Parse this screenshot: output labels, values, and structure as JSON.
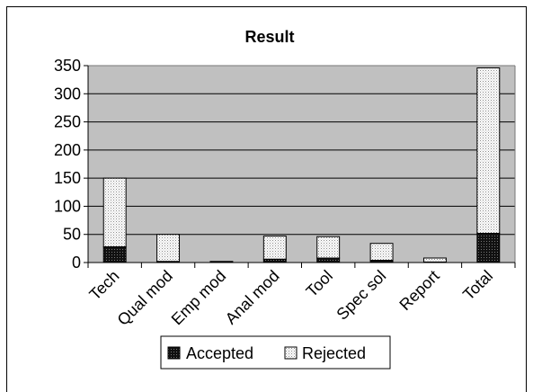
{
  "chart_data": {
    "type": "bar",
    "stacked": true,
    "title": "Result",
    "xlabel": "",
    "ylabel": "",
    "categories": [
      "Tech",
      "Qual mod",
      "Emp mod",
      "Anal mod",
      "Tool",
      "Spec sol",
      "Report",
      "Total"
    ],
    "series": [
      {
        "name": "Accepted",
        "values": [
          28,
          2,
          2,
          6,
          8,
          4,
          1,
          52
        ],
        "color": "#333333",
        "pattern": "dark-dots"
      },
      {
        "name": "Rejected",
        "values": [
          122,
          48,
          0,
          41,
          38,
          30,
          7,
          294
        ],
        "color": "#e8e8e8",
        "pattern": "light-dots"
      }
    ],
    "ylim": [
      0,
      350
    ],
    "yticks": [
      "0",
      "50",
      "100",
      "150",
      "200",
      "250",
      "300",
      "350"
    ],
    "plot_background": "#c0c0c0",
    "grid": true,
    "legend_position": "bottom"
  }
}
